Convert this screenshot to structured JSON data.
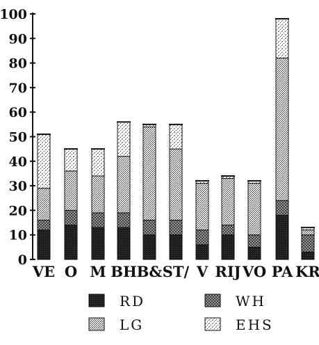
{
  "chart_data": {
    "type": "bar",
    "stacked": true,
    "categories": [
      "VE",
      "O",
      "M",
      "BH",
      "B&",
      "ST/",
      "V",
      "RIJ",
      "VO",
      "PA",
      "KR"
    ],
    "ylim": [
      0,
      100
    ],
    "yticks": [
      0,
      10,
      20,
      30,
      40,
      50,
      60,
      70,
      80,
      90,
      100
    ],
    "series": [
      {
        "name": "RD",
        "color": "#1a1a1a",
        "pattern": "solid-dark",
        "values": [
          12,
          14,
          13,
          13,
          10,
          10,
          6,
          10,
          5,
          18,
          3
        ]
      },
      {
        "name": "WH",
        "color": "#777777",
        "pattern": "checker",
        "values": [
          4,
          6,
          6,
          6,
          6,
          6,
          6,
          4,
          5,
          6,
          7
        ]
      },
      {
        "name": "LG",
        "color": "#999999",
        "pattern": "dense-dots",
        "values": [
          13,
          16,
          15,
          23,
          38,
          29,
          19,
          19,
          21,
          58,
          2
        ]
      },
      {
        "name": "EHS",
        "color": "#bbbbbb",
        "pattern": "sparse-dots",
        "values": [
          22,
          9,
          11,
          14,
          1,
          10,
          1,
          1,
          1,
          16,
          1
        ]
      }
    ],
    "legend": {
      "placement": "bottom",
      "entries": [
        "RD",
        "WH",
        "LG",
        "EHS"
      ]
    }
  }
}
